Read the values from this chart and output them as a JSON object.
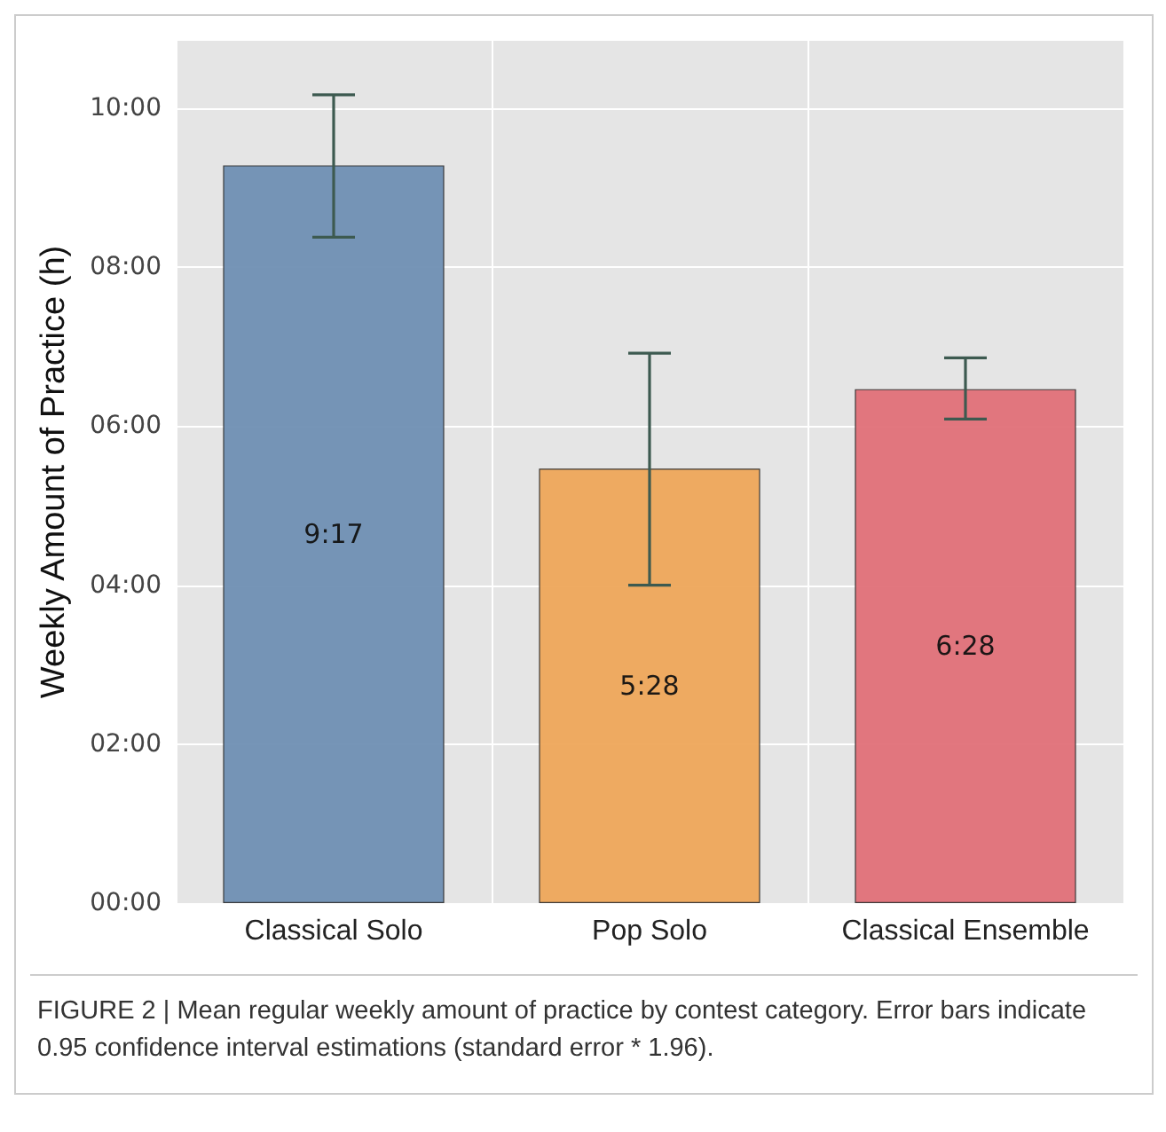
{
  "chart_data": {
    "type": "bar",
    "ylabel": "Weekly Amount of Practice (h)",
    "categories": [
      "Classical Solo",
      "Pop Solo",
      "Classical Ensemble"
    ],
    "values": [
      9.283,
      5.467,
      6.467
    ],
    "colors": [
      "#6f8fb3",
      "#eea65a",
      "#e07078"
    ],
    "value_labels": [
      "9:17",
      "5:28",
      "6:28"
    ],
    "errors": [
      [
        8.38,
        10.17
      ],
      [
        4.0,
        6.92
      ],
      [
        6.09,
        6.86
      ]
    ],
    "ylim": [
      0,
      10.85
    ],
    "yticks": [
      {
        "value": 0,
        "label": "00:00"
      },
      {
        "value": 2,
        "label": "02:00"
      },
      {
        "value": 4,
        "label": "04:00"
      },
      {
        "value": 6,
        "label": "06:00"
      },
      {
        "value": 8,
        "label": "08:00"
      },
      {
        "value": 10,
        "label": "10:00"
      }
    ],
    "grid": true,
    "annotations": [
      "FIGURE 2 | Mean regular weekly amount of practice by contest category. Error bars indicate 0.95 confidence interval estimations (standard error * 1.96)."
    ]
  }
}
